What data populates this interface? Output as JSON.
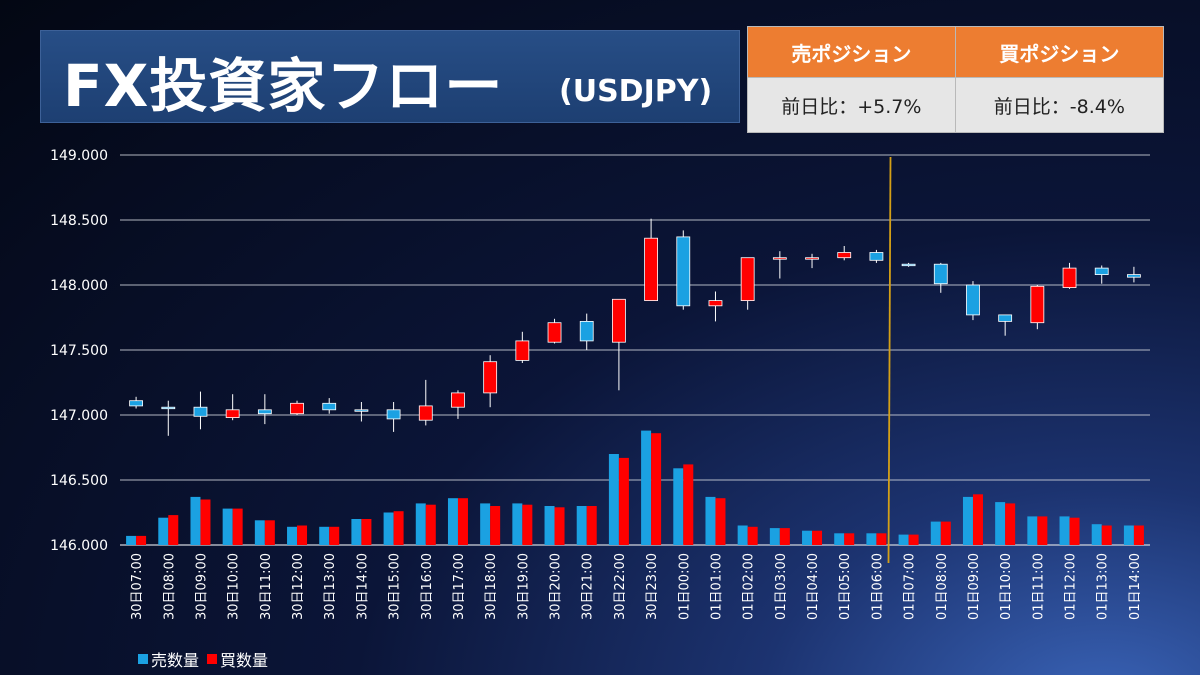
{
  "header": {
    "title": "FX投資家フロー",
    "pair": "(USDJPY)"
  },
  "positions": {
    "sell_label": "売ポジション",
    "buy_label": "買ポジション",
    "sell_change": "前日比：+5.7%",
    "buy_change": "前日比：-8.4%"
  },
  "legend": {
    "sell_volume": "売数量",
    "buy_volume": "買数量"
  },
  "colors": {
    "sell": "#1ba1e2",
    "buy": "#ff0000",
    "marker_line": "#d4a017",
    "header_orange": "#ed7d31"
  },
  "chart_data": {
    "type": "candlestick+bar",
    "ylim": [
      146.0,
      149.0
    ],
    "yticks": [
      "146.000",
      "146.500",
      "147.000",
      "147.500",
      "148.000",
      "148.500",
      "149.000"
    ],
    "grid": true,
    "legend_position": "bottom-left",
    "date_separator_after": "01日06:00",
    "categories": [
      "30日07:00",
      "30日08:00",
      "30日09:00",
      "30日10:00",
      "30日11:00",
      "30日12:00",
      "30日13:00",
      "30日14:00",
      "30日15:00",
      "30日16:00",
      "30日17:00",
      "30日18:00",
      "30日19:00",
      "30日20:00",
      "30日21:00",
      "30日22:00",
      "30日23:00",
      "01日00:00",
      "01日01:00",
      "01日02:00",
      "01日03:00",
      "01日04:00",
      "01日05:00",
      "01日06:00",
      "01日07:00",
      "01日08:00",
      "01日09:00",
      "01日10:00",
      "01日11:00",
      "01日12:00",
      "01日13:00",
      "01日14:00"
    ],
    "candles": [
      {
        "open": 147.11,
        "high": 147.14,
        "low": 147.05,
        "close": 147.07
      },
      {
        "open": 147.06,
        "high": 147.11,
        "low": 146.84,
        "close": 147.05
      },
      {
        "open": 147.06,
        "high": 147.18,
        "low": 146.89,
        "close": 146.99
      },
      {
        "open": 146.98,
        "high": 147.16,
        "low": 146.96,
        "close": 147.04
      },
      {
        "open": 147.04,
        "high": 147.16,
        "low": 146.93,
        "close": 147.01
      },
      {
        "open": 147.01,
        "high": 147.11,
        "low": 147.0,
        "close": 147.09
      },
      {
        "open": 147.09,
        "high": 147.13,
        "low": 147.01,
        "close": 147.04
      },
      {
        "open": 147.04,
        "high": 147.1,
        "low": 146.95,
        "close": 147.03
      },
      {
        "open": 147.04,
        "high": 147.1,
        "low": 146.87,
        "close": 146.97
      },
      {
        "open": 146.96,
        "high": 147.27,
        "low": 146.92,
        "close": 147.07
      },
      {
        "open": 147.06,
        "high": 147.19,
        "low": 146.97,
        "close": 147.17
      },
      {
        "open": 147.17,
        "high": 147.46,
        "low": 147.06,
        "close": 147.41
      },
      {
        "open": 147.42,
        "high": 147.64,
        "low": 147.4,
        "close": 147.57
      },
      {
        "open": 147.56,
        "high": 147.74,
        "low": 147.55,
        "close": 147.71
      },
      {
        "open": 147.72,
        "high": 147.78,
        "low": 147.5,
        "close": 147.57
      },
      {
        "open": 147.56,
        "high": 147.89,
        "low": 147.19,
        "close": 147.89
      },
      {
        "open": 147.88,
        "high": 148.51,
        "low": 147.88,
        "close": 148.36
      },
      {
        "open": 148.37,
        "high": 148.42,
        "low": 147.81,
        "close": 147.84
      },
      {
        "open": 147.84,
        "high": 147.95,
        "low": 147.72,
        "close": 147.88
      },
      {
        "open": 147.88,
        "high": 148.21,
        "low": 147.81,
        "close": 148.21
      },
      {
        "open": 148.21,
        "high": 148.26,
        "low": 148.05,
        "close": 148.21
      },
      {
        "open": 148.21,
        "high": 148.24,
        "low": 148.13,
        "close": 148.21
      },
      {
        "open": 148.21,
        "high": 148.3,
        "low": 148.19,
        "close": 148.25
      },
      {
        "open": 148.25,
        "high": 148.27,
        "low": 148.17,
        "close": 148.19
      },
      {
        "open": 148.16,
        "high": 148.17,
        "low": 148.14,
        "close": 148.15
      },
      {
        "open": 148.16,
        "high": 148.17,
        "low": 147.94,
        "close": 148.01
      },
      {
        "open": 148.0,
        "high": 148.03,
        "low": 147.73,
        "close": 147.77
      },
      {
        "open": 147.77,
        "high": 147.77,
        "low": 147.61,
        "close": 147.72
      },
      {
        "open": 147.71,
        "high": 148.0,
        "low": 147.66,
        "close": 147.99
      },
      {
        "open": 147.98,
        "high": 148.17,
        "low": 147.97,
        "close": 148.13
      },
      {
        "open": 148.13,
        "high": 148.15,
        "low": 148.01,
        "close": 148.08
      },
      {
        "open": 148.08,
        "high": 148.14,
        "low": 148.02,
        "close": 148.06
      }
    ],
    "series": [
      {
        "name": "売数量",
        "values": [
          146.07,
          146.21,
          146.37,
          146.28,
          146.19,
          146.14,
          146.14,
          146.2,
          146.25,
          146.32,
          146.36,
          146.32,
          146.32,
          146.3,
          146.3,
          146.7,
          146.88,
          146.59,
          146.37,
          146.15,
          146.13,
          146.11,
          146.09,
          146.09,
          146.08,
          146.18,
          146.37,
          146.33,
          146.22,
          146.22,
          146.16,
          146.15
        ]
      },
      {
        "name": "買数量",
        "values": [
          146.07,
          146.23,
          146.35,
          146.28,
          146.19,
          146.15,
          146.14,
          146.2,
          146.26,
          146.31,
          146.36,
          146.3,
          146.31,
          146.29,
          146.3,
          146.67,
          146.86,
          146.62,
          146.36,
          146.14,
          146.13,
          146.11,
          146.09,
          146.09,
          146.08,
          146.18,
          146.39,
          146.32,
          146.22,
          146.21,
          146.15,
          146.15
        ]
      }
    ]
  }
}
